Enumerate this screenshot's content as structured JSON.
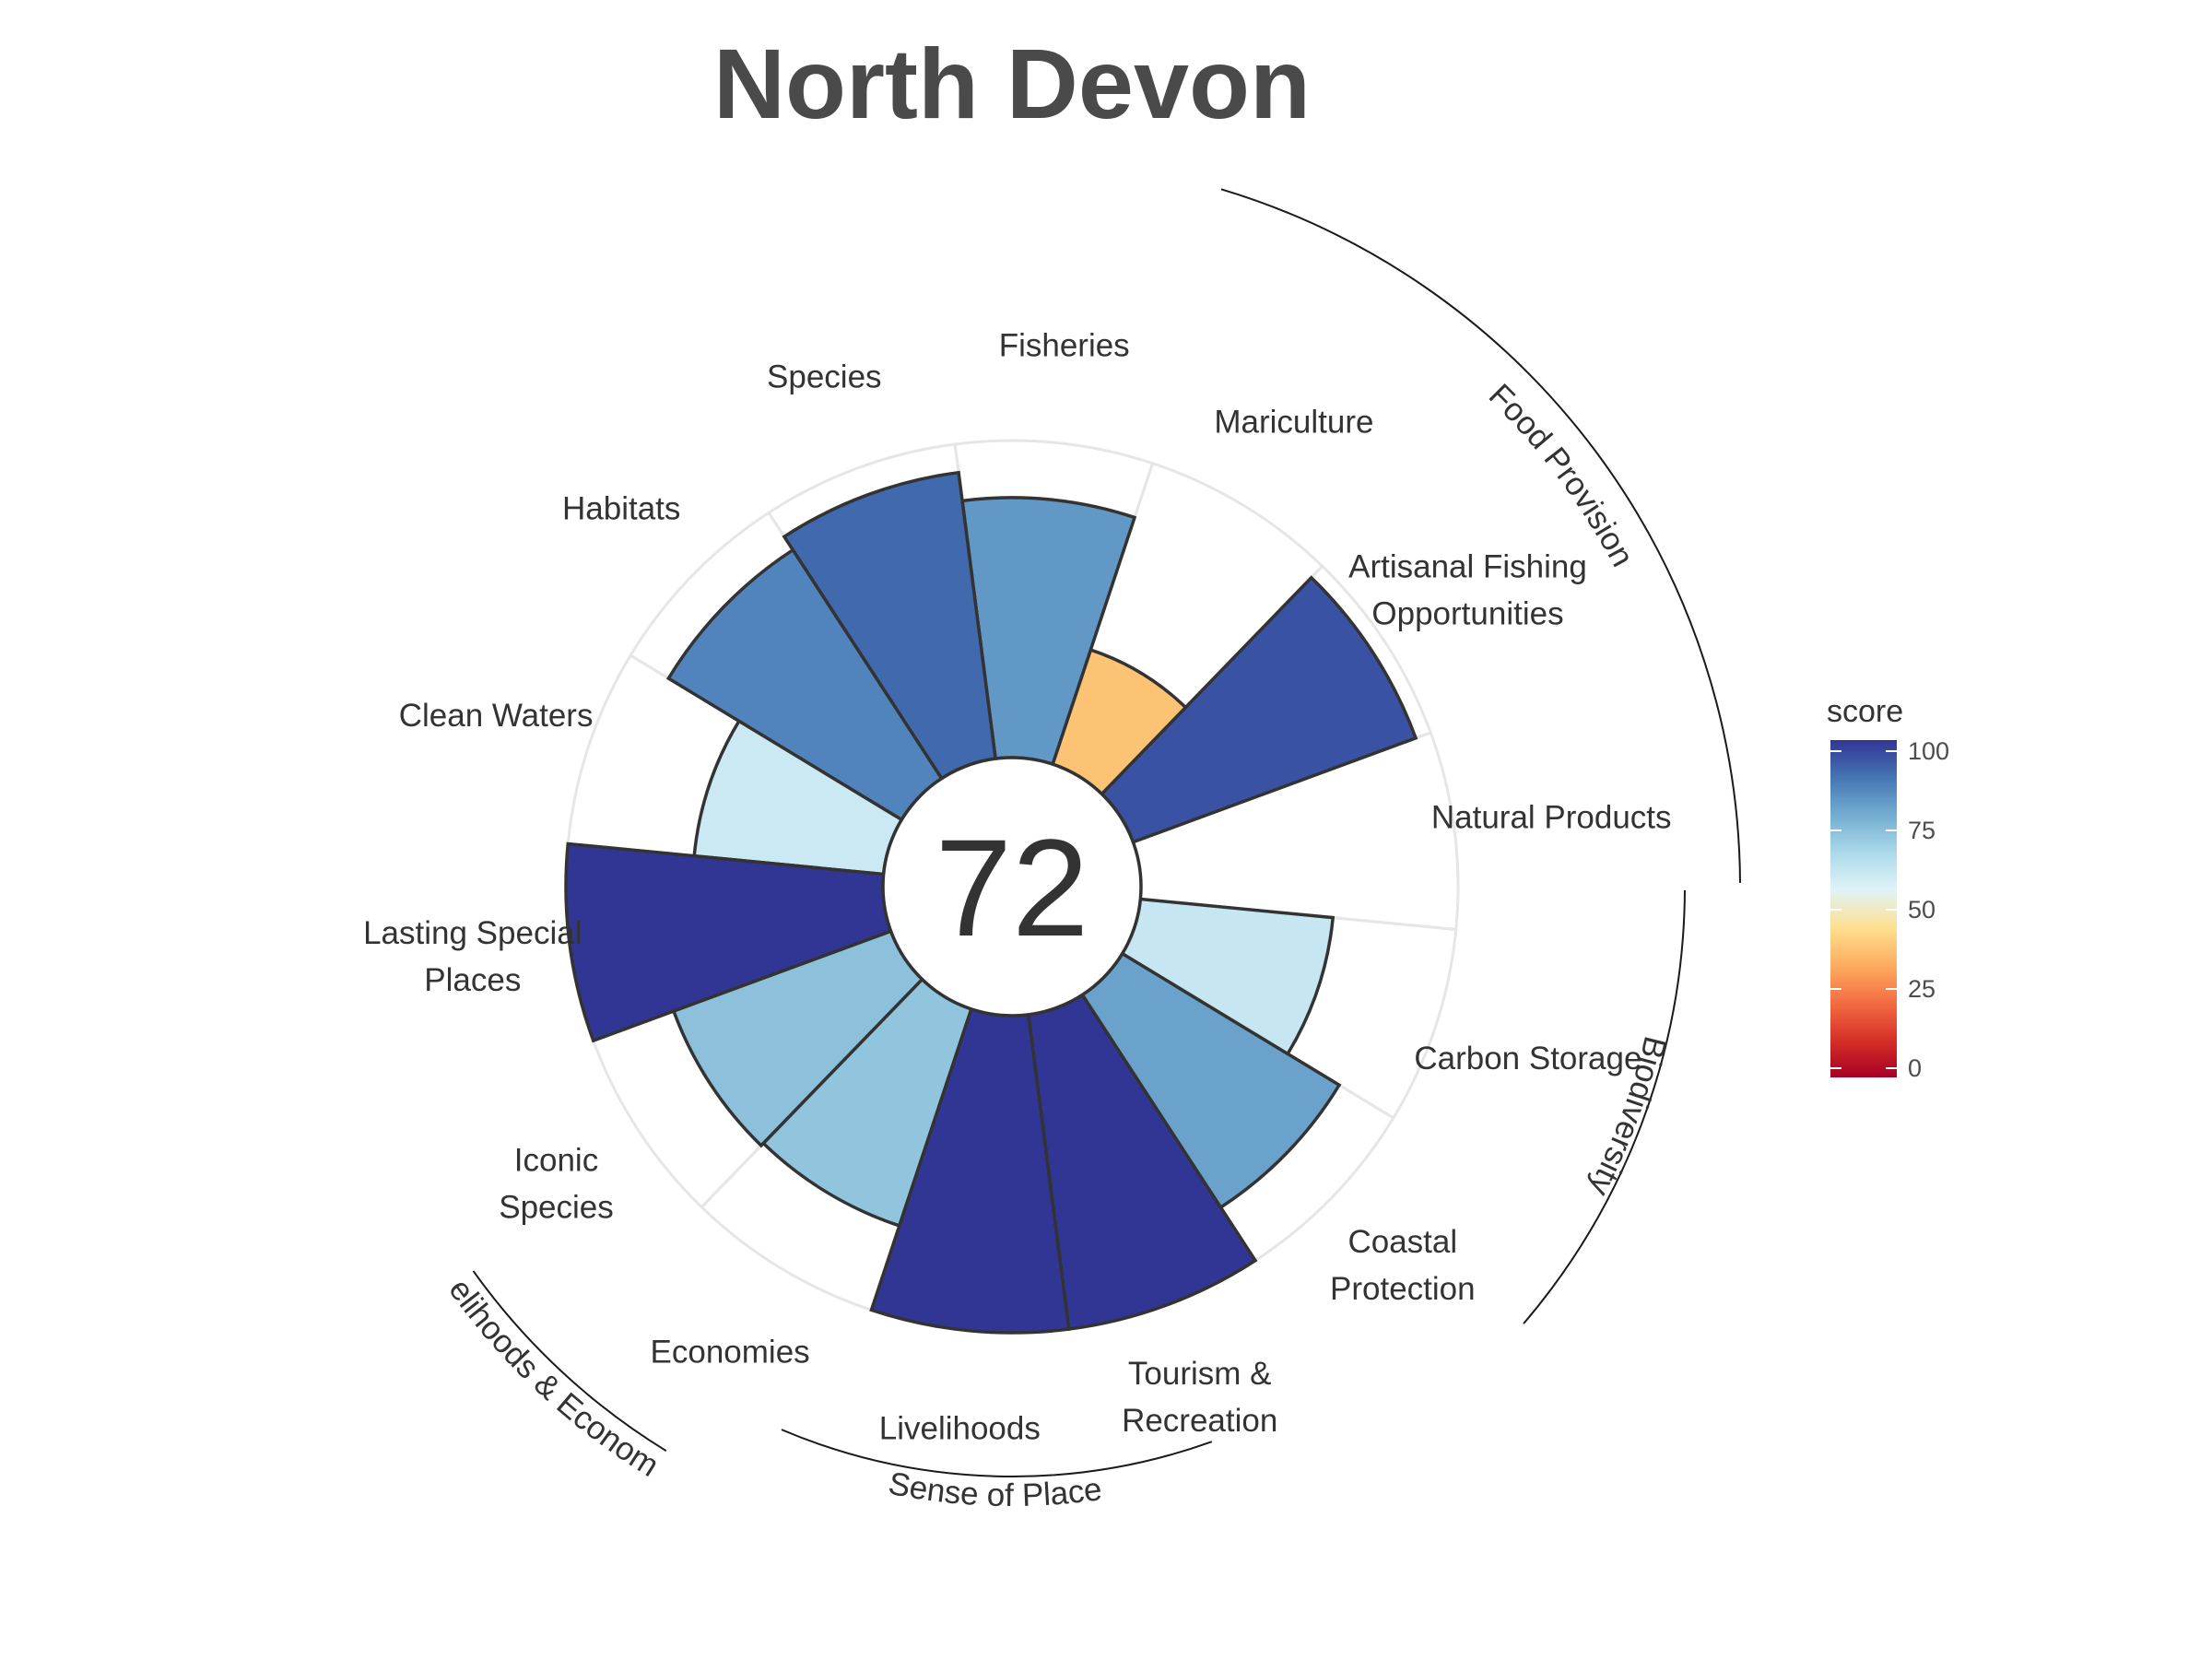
{
  "title": "North Devon",
  "colors": {
    "ring": "#e6e6e6",
    "bar_stroke": "#333333",
    "scale": [
      "#a50026",
      "#d73027",
      "#f46d43",
      "#fdae61",
      "#fee090",
      "#e0f3f8",
      "#abd9e9",
      "#74add1",
      "#4575b4",
      "#313695"
    ]
  },
  "chart_data": {
    "type": "polar-bar",
    "title": "North Devon",
    "center_value": "72",
    "ylim": [
      0,
      100
    ],
    "legend": {
      "title": "score",
      "ticks": [
        "0",
        "25",
        "50",
        "75",
        "100"
      ],
      "position": "right"
    },
    "goals": [
      {
        "name": "Artisanal Fishing Opportunities",
        "label_lines": [
          "Artisanal Fishing",
          "Opportunities"
        ],
        "score": 95
      },
      {
        "name": "Mariculture",
        "label_lines": [
          "Mariculture"
        ],
        "score": 38
      },
      {
        "name": "Fisheries",
        "label_lines": [
          "Fisheries"
        ],
        "score": 82
      },
      {
        "name": "Species",
        "label_lines": [
          "Species"
        ],
        "score": 91
      },
      {
        "name": "Habitats",
        "label_lines": [
          "Habitats"
        ],
        "score": 86
      },
      {
        "name": "Clean Waters",
        "label_lines": [
          "Clean Waters"
        ],
        "score": 60
      },
      {
        "name": "Lasting Special Places",
        "label_lines": [
          "Lasting Special",
          "Places"
        ],
        "score": 100
      },
      {
        "name": "Iconic Species",
        "label_lines": [
          "Iconic",
          "Species"
        ],
        "score": 73
      },
      {
        "name": "Economies",
        "label_lines": [
          "Economies"
        ],
        "score": 72
      },
      {
        "name": "Livelihoods",
        "label_lines": [
          "Livelihoods"
        ],
        "score": 100
      },
      {
        "name": "Tourism & Recreation",
        "label_lines": [
          "Tourism &",
          "Recreation"
        ],
        "score": 100
      },
      {
        "name": "Coastal Protection",
        "label_lines": [
          "Coastal",
          "Protection"
        ],
        "score": 80
      },
      {
        "name": "Carbon Storage",
        "label_lines": [
          "Carbon Storage"
        ],
        "score": 61
      },
      {
        "name": "Natural Products",
        "label_lines": [
          "Natural Products"
        ],
        "score": 0
      }
    ],
    "groups": [
      {
        "name": "Food Provision"
      },
      {
        "name": "Biodiversity"
      },
      {
        "name": "Sense of Place"
      },
      {
        "name": "Livelihoods & Economies"
      }
    ]
  }
}
